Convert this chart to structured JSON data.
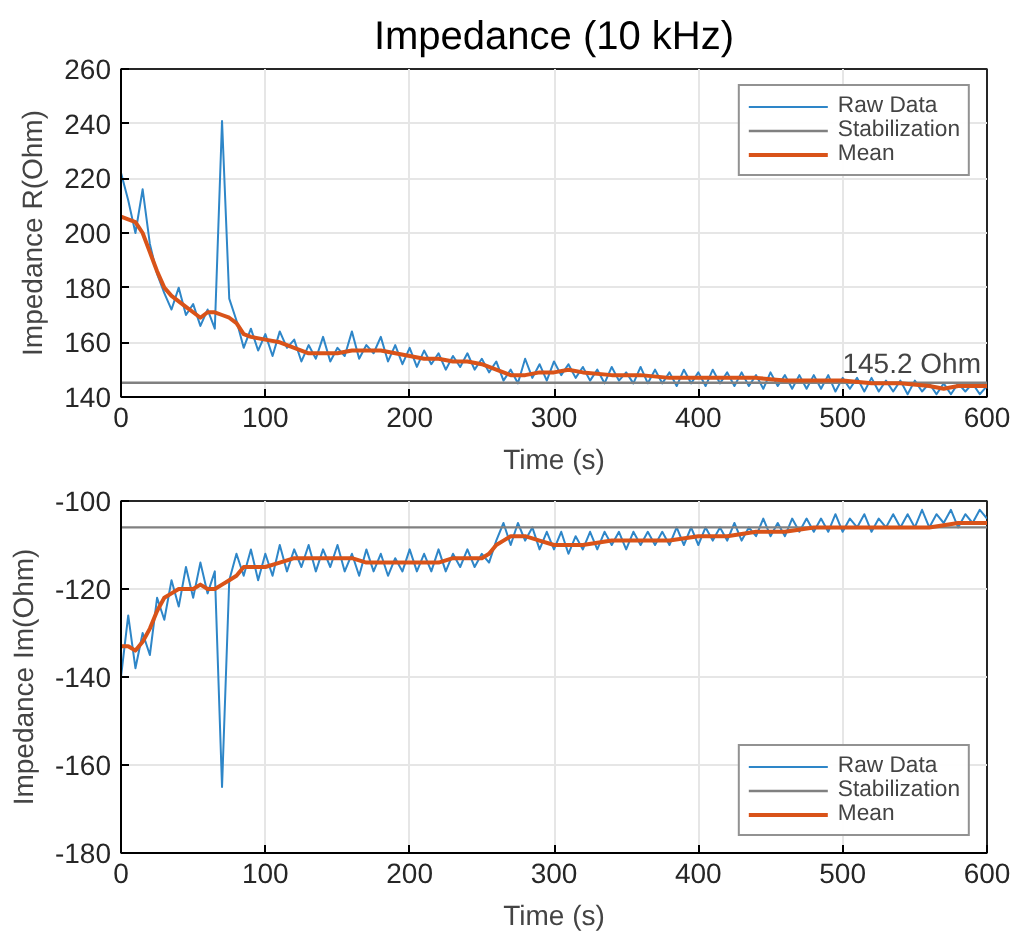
{
  "chart_data": [
    {
      "type": "line",
      "title": "Impedance (10 kHz)",
      "xlabel": "Time (s)",
      "ylabel": "Impedance R(Ohm)",
      "xlim": [
        0,
        600
      ],
      "xticks": [
        0,
        100,
        200,
        300,
        400,
        500,
        600
      ],
      "ylim": [
        140,
        260
      ],
      "yticks": [
        140,
        160,
        180,
        200,
        220,
        240,
        260
      ],
      "grid": true,
      "legend": "top right",
      "marker": "none",
      "line_style": "solid",
      "annotations": [
        {
          "text": "145.2 Ohm",
          "x": 600,
          "y": 145.2
        }
      ],
      "series": [
        {
          "name": "Raw Data",
          "color": "#2e86c8",
          "x": [
            0,
            5,
            10,
            15,
            20,
            25,
            30,
            35,
            40,
            45,
            50,
            55,
            60,
            65,
            70,
            75,
            80,
            85,
            90,
            95,
            100,
            105,
            110,
            115,
            120,
            125,
            130,
            135,
            140,
            145,
            150,
            155,
            160,
            165,
            170,
            175,
            180,
            185,
            190,
            195,
            200,
            205,
            210,
            215,
            220,
            225,
            230,
            235,
            240,
            245,
            250,
            255,
            260,
            265,
            270,
            275,
            280,
            285,
            290,
            295,
            300,
            305,
            310,
            315,
            320,
            325,
            330,
            335,
            340,
            345,
            350,
            355,
            360,
            365,
            370,
            375,
            380,
            385,
            390,
            395,
            400,
            405,
            410,
            415,
            420,
            425,
            430,
            435,
            440,
            445,
            450,
            455,
            460,
            465,
            470,
            475,
            480,
            485,
            490,
            495,
            500,
            505,
            510,
            515,
            520,
            525,
            530,
            535,
            540,
            545,
            550,
            555,
            560,
            565,
            570,
            575,
            580,
            585,
            590,
            595,
            600
          ],
          "values": [
            222,
            212,
            200,
            216,
            196,
            185,
            178,
            172,
            180,
            170,
            174,
            166,
            172,
            165,
            241,
            176,
            168,
            158,
            165,
            157,
            163,
            155,
            164,
            158,
            161,
            153,
            159,
            154,
            162,
            153,
            158,
            155,
            164,
            154,
            159,
            156,
            162,
            153,
            159,
            152,
            158,
            151,
            157,
            152,
            156,
            150,
            155,
            151,
            156,
            150,
            154,
            149,
            153,
            146,
            150,
            145,
            154,
            147,
            152,
            146,
            153,
            148,
            152,
            147,
            151,
            146,
            150,
            145,
            151,
            146,
            149,
            145,
            151,
            145,
            150,
            145,
            149,
            144,
            150,
            145,
            149,
            144,
            150,
            145,
            149,
            144,
            149,
            144,
            148,
            143,
            149,
            144,
            148,
            143,
            148,
            143,
            148,
            143,
            148,
            142,
            147,
            143,
            147,
            142,
            147,
            142,
            146,
            142,
            146,
            141,
            146,
            142,
            145,
            141,
            145,
            141,
            145,
            142,
            145,
            141,
            144
          ]
        },
        {
          "name": "Stabilization",
          "color": "#808080",
          "x": [
            0,
            600
          ],
          "values": [
            145.2,
            145.2
          ]
        },
        {
          "name": "Mean",
          "color": "#d95319",
          "x": [
            0,
            5,
            10,
            15,
            20,
            25,
            30,
            35,
            40,
            45,
            50,
            55,
            60,
            65,
            70,
            75,
            80,
            85,
            90,
            100,
            110,
            120,
            130,
            140,
            150,
            160,
            170,
            180,
            190,
            200,
            210,
            220,
            230,
            240,
            250,
            260,
            270,
            280,
            290,
            300,
            310,
            320,
            340,
            360,
            380,
            400,
            420,
            440,
            460,
            480,
            500,
            520,
            540,
            560,
            570,
            580,
            600
          ],
          "values": [
            206,
            205,
            204,
            200,
            193,
            186,
            180,
            177,
            175,
            173,
            171,
            169,
            171,
            171,
            170,
            169,
            167,
            163,
            162,
            161,
            160,
            158,
            156,
            156,
            156,
            157,
            157,
            157,
            156,
            155,
            154,
            154,
            153,
            153,
            152,
            150,
            148,
            148,
            149,
            149,
            150,
            149,
            148,
            148,
            147,
            147,
            147,
            147,
            146,
            146,
            146,
            145,
            145,
            144,
            143,
            144,
            144
          ]
        }
      ]
    },
    {
      "type": "line",
      "xlabel": "Time (s)",
      "ylabel": "Impedance Im(Ohm)",
      "xlim": [
        0,
        600
      ],
      "xticks": [
        0,
        100,
        200,
        300,
        400,
        500,
        600
      ],
      "ylim": [
        -180,
        -100
      ],
      "yticks": [
        -180,
        -160,
        -140,
        -120,
        -100
      ],
      "grid": true,
      "legend": "bottom right",
      "marker": "none",
      "line_style": "solid",
      "series": [
        {
          "name": "Raw Data",
          "color": "#2e86c8",
          "x": [
            0,
            5,
            10,
            15,
            20,
            25,
            30,
            35,
            40,
            45,
            50,
            55,
            60,
            65,
            70,
            75,
            80,
            85,
            90,
            95,
            100,
            105,
            110,
            115,
            120,
            125,
            130,
            135,
            140,
            145,
            150,
            155,
            160,
            165,
            170,
            175,
            180,
            185,
            190,
            195,
            200,
            205,
            210,
            215,
            220,
            225,
            230,
            235,
            240,
            245,
            250,
            255,
            260,
            265,
            270,
            275,
            280,
            285,
            290,
            295,
            300,
            305,
            310,
            315,
            320,
            325,
            330,
            335,
            340,
            345,
            350,
            355,
            360,
            365,
            370,
            375,
            380,
            385,
            390,
            395,
            400,
            405,
            410,
            415,
            420,
            425,
            430,
            435,
            440,
            445,
            450,
            455,
            460,
            465,
            470,
            475,
            480,
            485,
            490,
            495,
            500,
            505,
            510,
            515,
            520,
            525,
            530,
            535,
            540,
            545,
            550,
            555,
            560,
            565,
            570,
            575,
            580,
            585,
            590,
            595,
            600
          ],
          "values": [
            -140,
            -126,
            -138,
            -130,
            -135,
            -122,
            -127,
            -118,
            -124,
            -115,
            -122,
            -114,
            -121,
            -116,
            -165,
            -118,
            -112,
            -117,
            -111,
            -118,
            -112,
            -117,
            -110,
            -116,
            -111,
            -115,
            -110,
            -116,
            -111,
            -115,
            -110,
            -116,
            -112,
            -117,
            -111,
            -116,
            -112,
            -117,
            -113,
            -116,
            -111,
            -116,
            -112,
            -116,
            -111,
            -116,
            -112,
            -115,
            -111,
            -115,
            -112,
            -114,
            -109,
            -105,
            -110,
            -105,
            -109,
            -106,
            -111,
            -107,
            -111,
            -107,
            -112,
            -108,
            -111,
            -107,
            -111,
            -107,
            -110,
            -107,
            -111,
            -107,
            -110,
            -107,
            -110,
            -107,
            -110,
            -106,
            -110,
            -106,
            -110,
            -106,
            -109,
            -106,
            -109,
            -105,
            -109,
            -106,
            -108,
            -104,
            -108,
            -105,
            -108,
            -104,
            -107,
            -104,
            -107,
            -104,
            -107,
            -103,
            -107,
            -104,
            -106,
            -103,
            -107,
            -104,
            -106,
            -103,
            -106,
            -103,
            -106,
            -102,
            -106,
            -103,
            -105,
            -102,
            -106,
            -103,
            -105,
            -102,
            -104
          ]
        },
        {
          "name": "Stabilization",
          "color": "#808080",
          "x": [
            0,
            600
          ],
          "values": [
            -106,
            -106
          ]
        },
        {
          "name": "Mean",
          "color": "#d95319",
          "x": [
            0,
            5,
            10,
            15,
            20,
            25,
            30,
            35,
            40,
            50,
            55,
            60,
            65,
            70,
            75,
            80,
            85,
            90,
            100,
            110,
            120,
            130,
            140,
            150,
            160,
            170,
            180,
            190,
            200,
            210,
            220,
            230,
            240,
            250,
            255,
            260,
            265,
            270,
            280,
            290,
            300,
            320,
            340,
            360,
            380,
            400,
            420,
            440,
            460,
            480,
            500,
            520,
            540,
            560,
            580,
            600
          ],
          "values": [
            -133,
            -133,
            -134,
            -132,
            -129,
            -125,
            -122,
            -121,
            -120,
            -120,
            -119,
            -120,
            -120,
            -119,
            -118,
            -117,
            -115,
            -115,
            -115,
            -114,
            -113,
            -113,
            -113,
            -113,
            -113,
            -114,
            -114,
            -114,
            -114,
            -114,
            -114,
            -113,
            -113,
            -113,
            -112,
            -110,
            -109,
            -108,
            -108,
            -109,
            -110,
            -110,
            -109,
            -109,
            -109,
            -108,
            -108,
            -107,
            -107,
            -106,
            -106,
            -106,
            -106,
            -106,
            -105,
            -105
          ]
        }
      ]
    }
  ]
}
